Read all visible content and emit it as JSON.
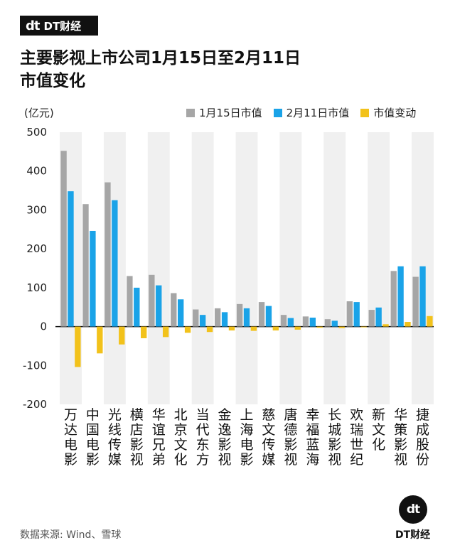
{
  "brand": {
    "mark": "dt",
    "name": "DT财经"
  },
  "title": "主要影视上市公司1月15日至2月11日\n市值变化",
  "source": "数据来源: Wind、雪球",
  "colors": {
    "series1": "#a6a6a6",
    "series2": "#1aa3e8",
    "series3": "#f2c21b",
    "band": "#f0f0f0",
    "text": "#111111"
  },
  "chart_data": {
    "type": "bar",
    "unit_label": "(亿元)",
    "categories": [
      "万达电影",
      "中国电影",
      "光线传媒",
      "横店影视",
      "华谊兄弟",
      "北京文化",
      "当代东方",
      "金逸影视",
      "上海电影",
      "慈文传媒",
      "唐德影视",
      "幸福蓝海",
      "长城影视",
      "欢瑞世纪",
      "新文化",
      "华策影视",
      "捷成股份"
    ],
    "series": [
      {
        "name": "1月15日市值",
        "values": [
          452,
          315,
          371,
          130,
          133,
          86,
          44,
          47,
          58,
          63,
          30,
          26,
          19,
          65,
          43,
          143,
          128
        ]
      },
      {
        "name": "2月11日市值",
        "values": [
          348,
          246,
          325,
          100,
          106,
          70,
          30,
          37,
          47,
          53,
          22,
          23,
          15,
          63,
          49,
          155,
          155
        ]
      },
      {
        "name": "市值变动",
        "values": [
          -104,
          -69,
          -46,
          -30,
          -27,
          -16,
          -14,
          -10,
          -11,
          -10,
          -8,
          -3,
          -4,
          -2,
          6,
          12,
          27
        ]
      }
    ],
    "ylim": [
      -200,
      500
    ],
    "yticks": [
      500,
      400,
      300,
      200,
      100,
      0,
      -100,
      -200
    ],
    "legend_position": "top-right",
    "grid": false
  }
}
